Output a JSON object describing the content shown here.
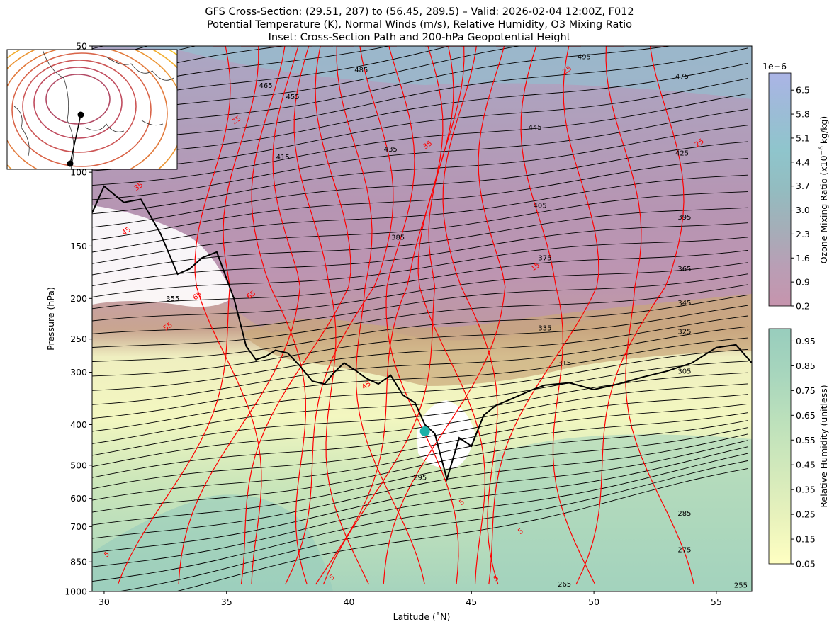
{
  "title": {
    "line1": "GFS Cross-Section: (29.51, 287) to (56.45, 289.5) – Valid: 2026-02-04 12:00Z, F012",
    "line2": "Potential Temperature (K), Normal Winds (m/s), Relative Humidity, O3 Mixing Ratio",
    "line3": "Inset: Cross-Section Path and 200-hPa Geopotential Height"
  },
  "chart_data": {
    "type": "cross-section",
    "xlabel": "Latitude (˚N)",
    "ylabel": "Pressure (hPa)",
    "xlim": [
      29.51,
      56.45
    ],
    "ylim": [
      1000,
      50
    ],
    "y_scale": "log",
    "x_ticks": [
      "30",
      "35",
      "40",
      "45",
      "50",
      "55"
    ],
    "x_tick_values": [
      30,
      35,
      40,
      45,
      50,
      55
    ],
    "y_ticks": [
      "50",
      "100",
      "150",
      "200",
      "250",
      "300",
      "400",
      "500",
      "600",
      "700",
      "850",
      "1000"
    ],
    "y_tick_values": [
      50,
      100,
      150,
      200,
      250,
      300,
      400,
      500,
      600,
      700,
      850,
      1000
    ],
    "theta_labels": [
      {
        "text": "495",
        "lat": 49.6,
        "p": 53
      },
      {
        "text": "485",
        "lat": 40.5,
        "p": 57
      },
      {
        "text": "475",
        "lat": 53.6,
        "p": 59
      },
      {
        "text": "465",
        "lat": 36.6,
        "p": 62
      },
      {
        "text": "455",
        "lat": 37.7,
        "p": 66
      },
      {
        "text": "445",
        "lat": 47.6,
        "p": 78
      },
      {
        "text": "435",
        "lat": 41.7,
        "p": 88
      },
      {
        "text": "425",
        "lat": 53.6,
        "p": 90
      },
      {
        "text": "415",
        "lat": 37.3,
        "p": 92
      },
      {
        "text": "405",
        "lat": 47.8,
        "p": 120
      },
      {
        "text": "395",
        "lat": 53.7,
        "p": 128
      },
      {
        "text": "385",
        "lat": 42.0,
        "p": 143
      },
      {
        "text": "375",
        "lat": 48.0,
        "p": 160
      },
      {
        "text": "365",
        "lat": 53.7,
        "p": 170
      },
      {
        "text": "355",
        "lat": 32.8,
        "p": 200
      },
      {
        "text": "345",
        "lat": 53.7,
        "p": 205
      },
      {
        "text": "335",
        "lat": 48.0,
        "p": 235
      },
      {
        "text": "325",
        "lat": 53.7,
        "p": 240
      },
      {
        "text": "315",
        "lat": 48.8,
        "p": 285
      },
      {
        "text": "305",
        "lat": 53.7,
        "p": 298
      },
      {
        "text": "295",
        "lat": 42.9,
        "p": 535
      },
      {
        "text": "285",
        "lat": 53.7,
        "p": 650
      },
      {
        "text": "275",
        "lat": 53.7,
        "p": 795
      },
      {
        "text": "265",
        "lat": 48.8,
        "p": 960
      },
      {
        "text": "255",
        "lat": 56.0,
        "p": 965
      }
    ],
    "wind_labels": [
      {
        "text": "25",
        "lat": 35.4,
        "p": 75
      },
      {
        "text": "25",
        "lat": 48.9,
        "p": 57
      },
      {
        "text": "25",
        "lat": 54.3,
        "p": 85
      },
      {
        "text": "35",
        "lat": 43.2,
        "p": 86
      },
      {
        "text": "35",
        "lat": 31.4,
        "p": 108
      },
      {
        "text": "45",
        "lat": 30.9,
        "p": 138
      },
      {
        "text": "65",
        "lat": 33.8,
        "p": 197
      },
      {
        "text": "65",
        "lat": 36.0,
        "p": 196
      },
      {
        "text": "55",
        "lat": 32.6,
        "p": 233
      },
      {
        "text": "45",
        "lat": 40.7,
        "p": 322
      },
      {
        "text": "15",
        "lat": 47.6,
        "p": 168
      },
      {
        "text": "5",
        "lat": 44.6,
        "p": 612
      },
      {
        "text": "5",
        "lat": 47.0,
        "p": 718
      },
      {
        "text": "5",
        "lat": 30.1,
        "p": 815
      },
      {
        "text": "5",
        "lat": 39.3,
        "p": 925
      },
      {
        "text": "5",
        "lat": 46.0,
        "p": 930
      }
    ],
    "tropopause_lat": [
      29.51,
      30.0,
      30.8,
      31.5,
      32.3,
      33.0,
      33.5,
      34.0,
      34.6,
      35.3,
      35.8,
      36.2,
      36.6,
      37.0,
      37.5,
      38.0,
      38.5,
      39.0,
      39.4,
      39.8,
      40.3,
      40.7,
      41.2,
      41.7,
      42.2,
      42.7,
      43.1,
      43.5,
      44.0,
      44.5,
      45.0,
      45.5,
      46.0,
      46.5,
      47.0,
      47.5,
      48.0,
      49.0,
      50.0,
      51.0,
      52.0,
      53.0,
      54.0,
      55.0,
      55.8,
      56.45
    ],
    "tropopause_p": [
      125,
      108,
      118,
      116,
      140,
      175,
      170,
      160,
      155,
      200,
      260,
      280,
      275,
      266,
      270,
      290,
      315,
      320,
      300,
      285,
      298,
      310,
      320,
      305,
      340,
      355,
      400,
      420,
      540,
      430,
      450,
      380,
      360,
      350,
      340,
      330,
      322,
      318,
      330,
      320,
      308,
      298,
      285,
      262,
      258,
      285
    ],
    "red_dot": {
      "lat": 43.1,
      "p": 415,
      "color": "#1ab0a8"
    },
    "colorbars": [
      {
        "label": "Ozone Mixing Ratio (x10 −6 kg/kg)",
        "label_main": "Ozone Mixing Ratio (x10",
        "label_exp": "−6",
        "label_tail": "kg/kg)",
        "multiplier": "1e−6",
        "ticks": [
          "0.2",
          "0.9",
          "1.6",
          "2.3",
          "3.0",
          "3.7",
          "4.4",
          "5.1",
          "5.8",
          "6.5"
        ],
        "range": [
          0.2,
          7.0
        ],
        "colors": [
          "#c694ad",
          "#b99eb5",
          "#a4aeb8",
          "#93bcc0",
          "#8fc5cc",
          "#9cbcd6",
          "#abb4e6"
        ]
      },
      {
        "label": "Relative Humidity (unitless)",
        "ticks": [
          "0.05",
          "0.15",
          "0.25",
          "0.35",
          "0.45",
          "0.55",
          "0.65",
          "0.75",
          "0.85",
          "0.95"
        ],
        "range": [
          0.05,
          1.0
        ],
        "colors": [
          "#ffffc2",
          "#e8f2bc",
          "#d2e9bb",
          "#bde1bb",
          "#a8d6bd",
          "#98cdbd"
        ]
      }
    ],
    "inset": {
      "path_start": {
        "lat": 29.51,
        "lon": 287
      },
      "path_end": {
        "lat": 56.45,
        "lon": 289.5
      }
    }
  }
}
